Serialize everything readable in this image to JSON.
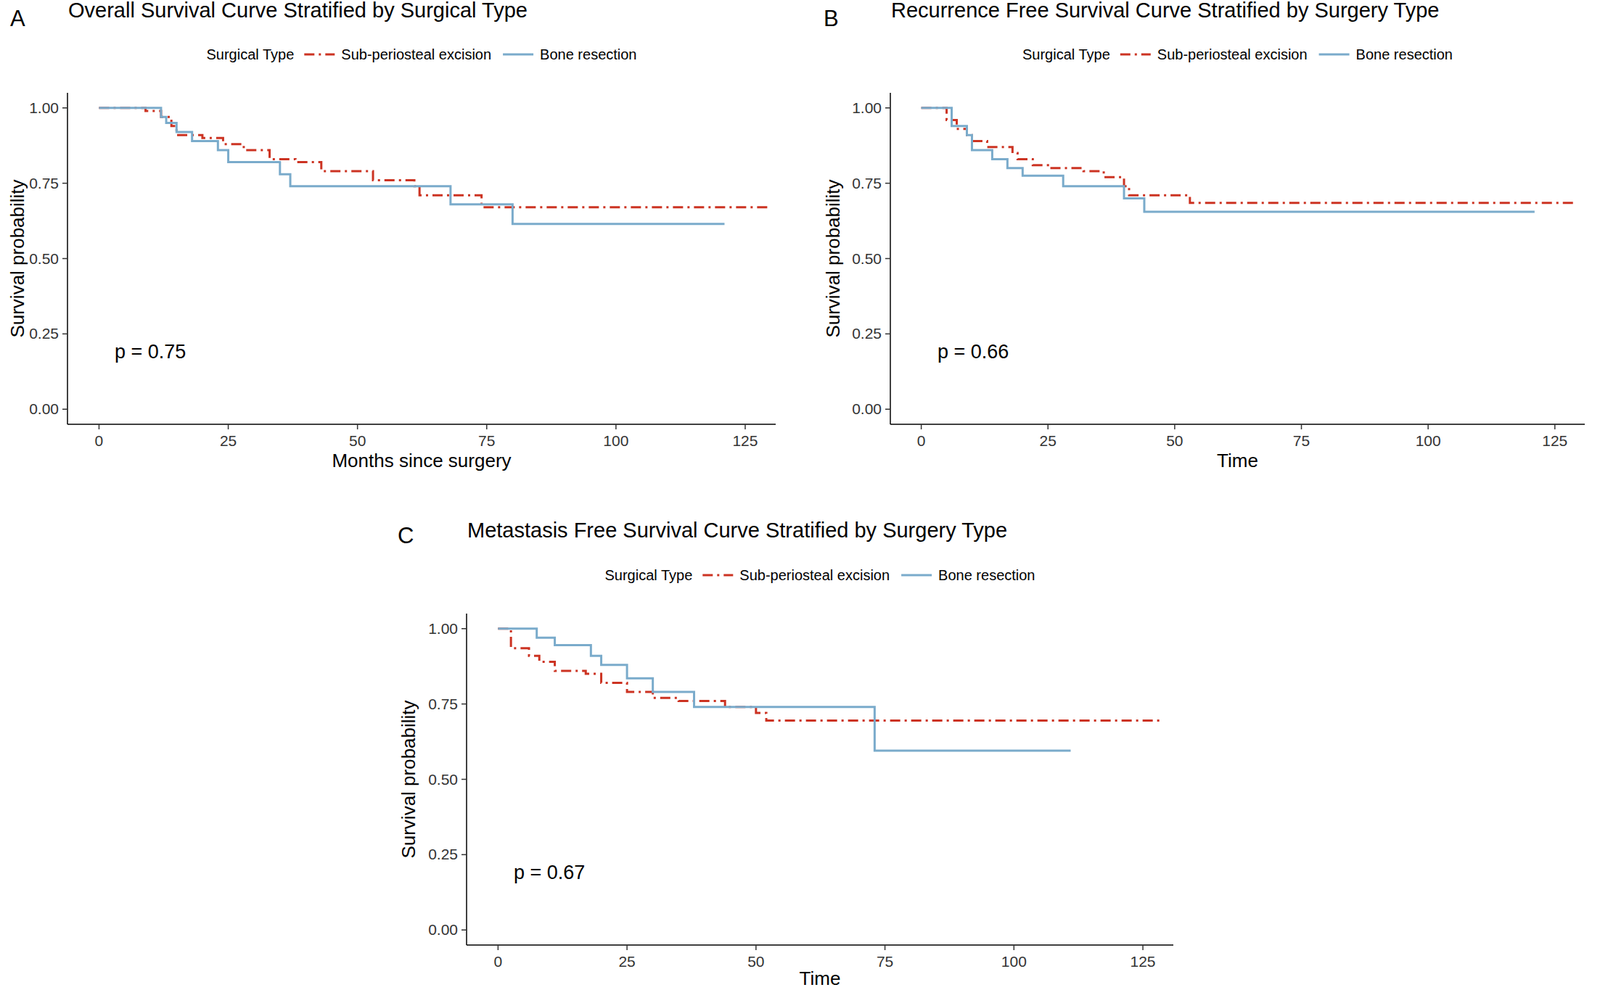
{
  "chart_data": [
    {
      "type": "step",
      "panel": "A",
      "title": "Overall Survival Curve Stratified by Surgical Type",
      "x_label": "Months since surgery",
      "y_label": "Survival probability",
      "legend_title": "Surgical Type",
      "annotation": "p = 0.75",
      "xlim": [
        -6.1,
        130.9
      ],
      "ylim": [
        -0.05,
        1.05
      ],
      "xticks": [
        0,
        25,
        50,
        75,
        100,
        125
      ],
      "yticks": [
        {
          "value": 0,
          "label": "0.00"
        },
        {
          "value": 0.25,
          "label": "0.25"
        },
        {
          "value": 0.5,
          "label": "0.50"
        },
        {
          "value": 0.75,
          "label": "0.75"
        },
        {
          "value": 1,
          "label": "1.00"
        }
      ],
      "series": [
        {
          "name": "Sub-periosteal excision",
          "color": "#cc3322",
          "line_style": "dotdash",
          "x": [
            0,
            9,
            12,
            14,
            15,
            20,
            24,
            28,
            33,
            38,
            43,
            53,
            61,
            62,
            74,
            130
          ],
          "values": [
            1,
            0.99,
            0.97,
            0.94,
            0.91,
            0.9,
            0.88,
            0.86,
            0.83,
            0.82,
            0.79,
            0.76,
            0.74,
            0.71,
            0.67,
            0.67
          ]
        },
        {
          "name": "Bone resection",
          "color": "#7aabcb",
          "line_style": "solid",
          "x": [
            0,
            12,
            13,
            15,
            18,
            23,
            25,
            35,
            37,
            68,
            80,
            121
          ],
          "values": [
            1,
            0.97,
            0.95,
            0.92,
            0.89,
            0.86,
            0.82,
            0.78,
            0.74,
            0.68,
            0.615,
            0.615
          ]
        }
      ]
    },
    {
      "type": "step",
      "panel": "B",
      "title": "Recurrence Free Survival Curve Stratified by Surgery Type",
      "x_label": "Time",
      "y_label": "Survival probability",
      "legend_title": "Surgical Type",
      "annotation": "p = 0.66",
      "xlim": [
        -6.1,
        130.9
      ],
      "ylim": [
        -0.05,
        1.05
      ],
      "xticks": [
        0,
        25,
        50,
        75,
        100,
        125
      ],
      "yticks": [
        {
          "value": 0,
          "label": "0.00"
        },
        {
          "value": 0.25,
          "label": "0.25"
        },
        {
          "value": 0.5,
          "label": "0.50"
        },
        {
          "value": 0.75,
          "label": "0.75"
        },
        {
          "value": 1,
          "label": "1.00"
        }
      ],
      "series": [
        {
          "name": "Sub-periosteal excision",
          "color": "#cc3322",
          "line_style": "dotdash",
          "x": [
            0,
            5,
            7,
            9,
            10,
            13,
            18,
            19,
            22,
            25,
            32,
            36,
            40,
            41,
            53,
            129
          ],
          "values": [
            1,
            0.96,
            0.93,
            0.91,
            0.89,
            0.87,
            0.85,
            0.83,
            0.81,
            0.8,
            0.79,
            0.77,
            0.74,
            0.71,
            0.685,
            0.685
          ]
        },
        {
          "name": "Bone resection",
          "color": "#7aabcb",
          "line_style": "solid",
          "x": [
            0,
            5,
            6,
            9,
            10,
            14,
            17,
            20,
            28,
            40,
            44,
            121
          ],
          "values": [
            1,
            1,
            0.94,
            0.91,
            0.86,
            0.83,
            0.8,
            0.775,
            0.74,
            0.7,
            0.655,
            0.655
          ]
        }
      ]
    },
    {
      "type": "step",
      "panel": "C",
      "title": "Metastasis Free Survival Curve Stratified by Surgery Type",
      "x_label": "Time",
      "y_label": "Survival probability",
      "legend_title": "Surgical Type",
      "annotation": "p = 0.67",
      "xlim": [
        -6.1,
        130.9
      ],
      "ylim": [
        -0.05,
        1.05
      ],
      "xticks": [
        0,
        25,
        50,
        75,
        100,
        125
      ],
      "yticks": [
        {
          "value": 0,
          "label": "0.00"
        },
        {
          "value": 0.25,
          "label": "0.25"
        },
        {
          "value": 0.5,
          "label": "0.50"
        },
        {
          "value": 0.75,
          "label": "0.75"
        },
        {
          "value": 1,
          "label": "1.00"
        }
      ],
      "series": [
        {
          "name": "Sub-periosteal excision",
          "color": "#cc3322",
          "line_style": "dotdash",
          "x": [
            0,
            2.5,
            6,
            8,
            11,
            17,
            20,
            25,
            30,
            35,
            44,
            50,
            52,
            129
          ],
          "values": [
            1,
            0.935,
            0.91,
            0.89,
            0.86,
            0.85,
            0.82,
            0.79,
            0.77,
            0.76,
            0.74,
            0.72,
            0.695,
            0.695
          ]
        },
        {
          "name": "Bone resection",
          "color": "#7aabcb",
          "line_style": "solid",
          "x": [
            0,
            7.5,
            11,
            18,
            20,
            25,
            30,
            38,
            73,
            111
          ],
          "values": [
            1,
            0.97,
            0.945,
            0.91,
            0.88,
            0.835,
            0.79,
            0.74,
            0.595,
            0.595
          ]
        }
      ]
    }
  ]
}
